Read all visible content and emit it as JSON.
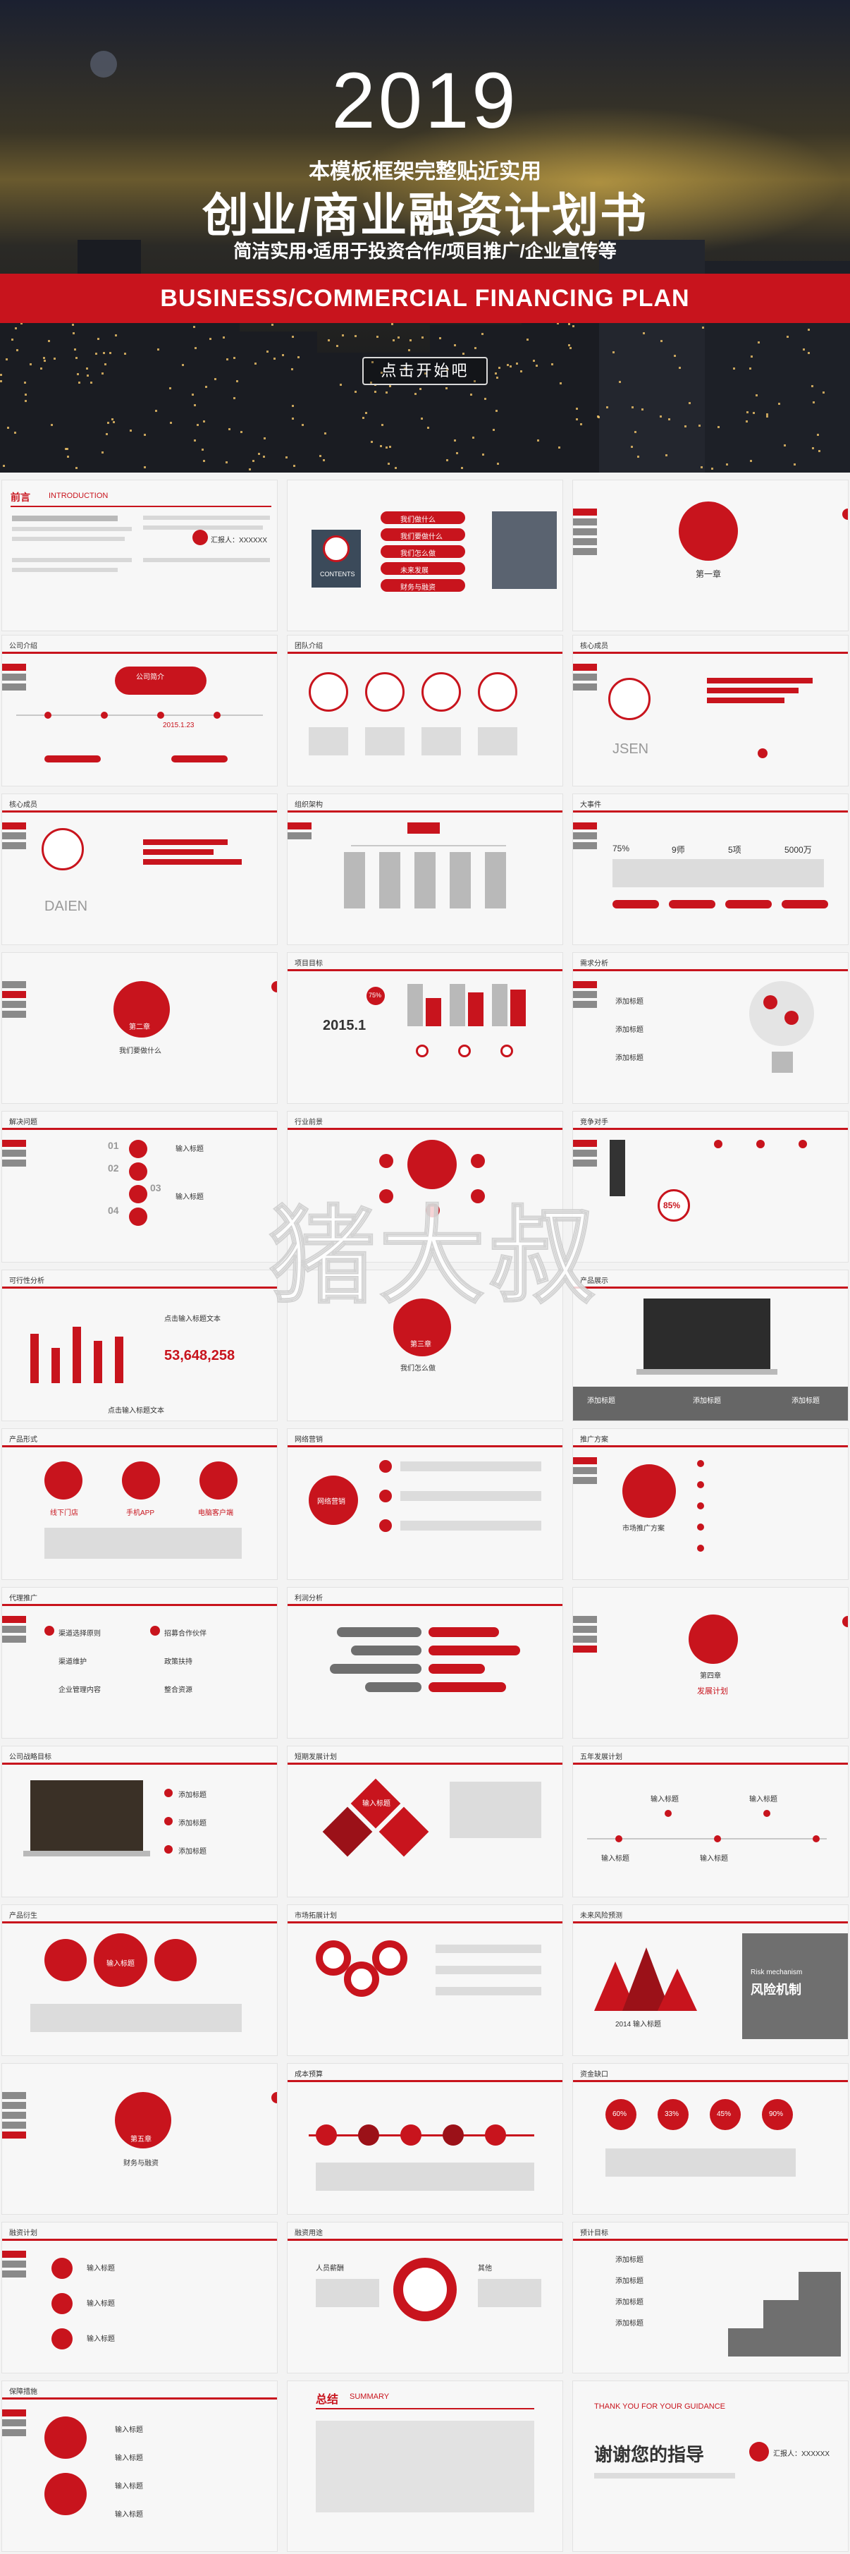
{
  "hero": {
    "year": "2019",
    "subtitle_top": "本模板框架完整贴近实用",
    "title": "创业/商业融资计划书",
    "subtitle_bottom": "简洁实用•适用于投资合作/项目推广/企业宣传等",
    "banner_en": "BUSINESS/COMMERCIAL FINANCING PLAN",
    "start_button": "点击开始吧"
  },
  "colors": {
    "accent": "#c8141d",
    "gray": "#8a8a8a",
    "bg": "#f3f3f3"
  },
  "watermark": "猪大叔",
  "slides": {
    "s1": {
      "title": "前言",
      "title_en": "INTRODUCTION",
      "name": "汇报人：XXXXXX"
    },
    "s2": {
      "menu": [
        "我们做什么",
        "我们要做什么",
        "我们怎么做",
        "未来发展",
        "财务与融资"
      ],
      "contents": "CONTENTS"
    },
    "s3": {
      "chapter": "第一章"
    },
    "s4": {
      "title": "公司介绍",
      "title_en": "COMPANY INTRODUCTION",
      "date": "2015.1.23",
      "bubble": "公司简介"
    },
    "s5": {
      "title": "团队介绍",
      "title_en": "TEAM TO INTRODUCE"
    },
    "s6": {
      "title": "核心成员",
      "title_en": "THE CORE MEMBERS",
      "name": "JSEN"
    },
    "s7": {
      "title": "核心成员",
      "title_en": "THE CORE MEMBERS",
      "name": "DAIEN"
    },
    "s8": {
      "title": "组织架构",
      "title_en": "THE COMPANY STRUCTURE"
    },
    "s9": {
      "title": "大事件",
      "title_en": "THE BIG EVENT",
      "stats": [
        "75%",
        "9师",
        "5项",
        "5000万"
      ]
    },
    "s10": {
      "chapter": "第二章",
      "label": "我们要做什么"
    },
    "s11": {
      "title": "项目目标",
      "title_en": "PROJECT SOURCE",
      "year": "2015.1",
      "pct": "75%"
    },
    "s12": {
      "title": "需求分析",
      "title_en": "DEMAND ANALYSIS",
      "items": [
        "添加标题",
        "添加标题",
        "添加标题"
      ]
    },
    "s13": {
      "title": "解决问题",
      "title_en": "TO SOLVE THE PROBLEM",
      "nums": [
        "01",
        "02",
        "03",
        "04"
      ],
      "label": "输入标题"
    },
    "s14": {
      "title": "行业前景",
      "title_en": "INDUSTRY OUTLOOK"
    },
    "s15": {
      "title": "竞争对手",
      "title_en": "COMPETITORS",
      "pct": "85%"
    },
    "s16": {
      "title": "可行性分析",
      "title_en": "THE FEASIBILITY ANALYSIS",
      "value": "53,648,258",
      "caption": "点击输入标题文本"
    },
    "s17": {
      "chapter": "第三章",
      "label": "我们怎么做"
    },
    "s18": {
      "title": "产品展示",
      "title_en": "PRODUCT OVERVIEW",
      "items": [
        "添加标题",
        "添加标题",
        "添加标题"
      ]
    },
    "s19": {
      "title": "产品形式",
      "title_en": "PRODUCT FORM",
      "items": [
        "线下门店",
        "手机APP",
        "电脑客户端"
      ]
    },
    "s20": {
      "title": "网络营销",
      "title_en": "THE NETWORK MARKETING",
      "label": "网络营销"
    },
    "s21": {
      "title": "推广方案",
      "title_en": "PROMOTION PLAN",
      "label": "市场推广方案"
    },
    "s22": {
      "title": "代理推广",
      "title_en": "THE AGENT TO PROMOTE",
      "items": [
        "渠道选择原则",
        "渠道维护",
        "企业管理内容",
        "招募合作伙伴",
        "政策扶持",
        "整合资源"
      ]
    },
    "s23": {
      "title": "利润分析",
      "title_en": "PROFIT ANALYSIS"
    },
    "s24": {
      "chapter": "第四章",
      "label": "发展计划"
    },
    "s25": {
      "title": "公司战略目标",
      "title_en": "COMPANY STRATEGIC OBJECTIVES",
      "items": [
        "添加标题",
        "添加标题",
        "添加标题"
      ]
    },
    "s26": {
      "title": "短期发展计划",
      "title_en": "SHORT-TERM PROFIT PLAN",
      "label": "输入标题"
    },
    "s27": {
      "title": "五年发展计划",
      "title_en": "FIVE YEARS DEVELOPMENT PLAN",
      "label": "输入标题"
    },
    "s28": {
      "title": "产品衍生",
      "title_en": "DERIVATIVE PRODUCTS",
      "label": "输入标题"
    },
    "s29": {
      "title": "市场拓展计划",
      "title_en": "MARKET DEVELOPMENT PLAN"
    },
    "s30": {
      "title": "未来风险预测",
      "title_en": "THE FUTURE RISK PREDICTION",
      "risk_en": "Risk mechanism",
      "risk_cn": "风险机制",
      "year": "2014 输入标题"
    },
    "s31": {
      "chapter": "第五章",
      "label": "财务与融资"
    },
    "s32": {
      "title": "成本预算",
      "title_en": "COST BUDGET"
    },
    "s33": {
      "title": "资金缺口",
      "title_en": "THE FUNDING GAP",
      "pcts": [
        "60%",
        "33%",
        "45%",
        "90%"
      ]
    },
    "s34": {
      "title": "融资计划",
      "title_en": "THE FINANCING PLAN",
      "label": "输入标题"
    },
    "s35": {
      "title": "融资用途",
      "title_en": "FINANCING PURPOSES",
      "label": "人员薪酬",
      "label2": "其他"
    },
    "s36": {
      "title": "预计目标",
      "title_en": "OBJECTIVE TO PREDICT",
      "items": [
        "添加标题",
        "添加标题",
        "添加标题",
        "添加标题"
      ]
    },
    "s37": {
      "title": "保障措施",
      "title_en": "SAFEGUARD MEASURES",
      "label": "输入标题"
    },
    "s38": {
      "title": "总结",
      "title_en": "SUMMARY"
    },
    "s39": {
      "thanks_en": "THANK YOU FOR YOUR GUIDANCE",
      "thanks_cn": "谢谢您的指导",
      "name": "汇报人：XXXXXX"
    }
  }
}
